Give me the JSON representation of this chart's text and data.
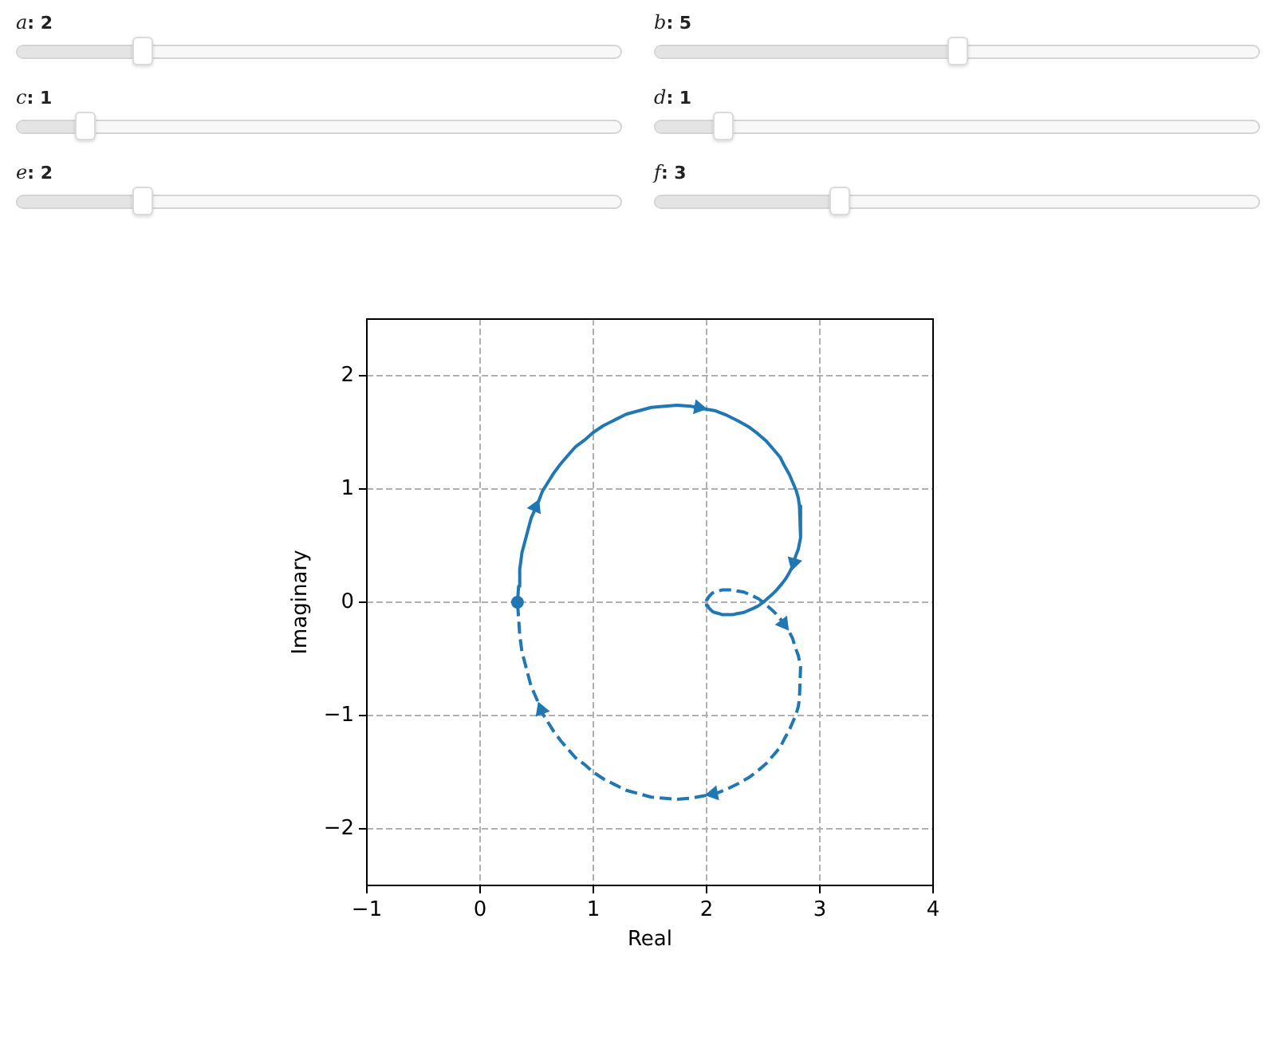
{
  "chart_data": {
    "type": "line",
    "xlabel": "Real",
    "ylabel": "Imaginary",
    "annotations": [
      "a: 2",
      "b: 5",
      "c: 1",
      "d: 1",
      "e: 2",
      "f: 3"
    ],
    "xlim": [
      -1,
      4
    ],
    "ylim": [
      -2.5,
      2.5
    ],
    "xticks": [
      {
        "value": -1,
        "label": "−1"
      },
      0,
      1,
      2,
      3,
      4
    ],
    "yticks": [
      {
        "value": -2,
        "label": "−2"
      },
      {
        "value": -1,
        "label": "−1"
      },
      0,
      1,
      2
    ],
    "grid": true,
    "series": [
      {
        "type": "line",
        "color": "#1f77b4",
        "line_style": "solid",
        "x": [
          0.33,
          0.34,
          0.35,
          0.37,
          0.41,
          0.45,
          0.52,
          0.55,
          0.6,
          0.65,
          0.71,
          0.77,
          0.84,
          0.92,
          1.0,
          1.09,
          1.19,
          1.29,
          1.4,
          1.51,
          1.63,
          1.74,
          1.86,
          1.97,
          2.08,
          2.18,
          2.28,
          2.37,
          2.45,
          2.53,
          2.59,
          2.65,
          2.69,
          2.73,
          2.76,
          2.79,
          2.81,
          2.82,
          2.83,
          2.81,
          2.78,
          2.76,
          2.73,
          2.7,
          2.67,
          2.62,
          2.58,
          2.5,
          2.46,
          2.42,
          2.33,
          2.27,
          2.23,
          2.19,
          2.14,
          2.11,
          2.07,
          2.05,
          2.03,
          2.02,
          2.01,
          2.0,
          2.0
        ],
        "values": [
          0,
          0.14,
          0.29,
          0.44,
          0.59,
          0.74,
          0.9,
          0.98,
          1.06,
          1.14,
          1.22,
          1.29,
          1.37,
          1.43,
          1.5,
          1.56,
          1.61,
          1.66,
          1.69,
          1.72,
          1.73,
          1.74,
          1.73,
          1.71,
          1.69,
          1.65,
          1.6,
          1.55,
          1.49,
          1.42,
          1.35,
          1.28,
          1.2,
          1.13,
          1.06,
          0.99,
          0.92,
          0.85,
          0.57,
          0.47,
          0.39,
          0.32,
          0.26,
          0.21,
          0.17,
          0.11,
          0.07,
          0,
          -0.03,
          -0.05,
          -0.09,
          -0.1,
          -0.11,
          -0.11,
          -0.11,
          -0.1,
          -0.09,
          -0.08,
          -0.06,
          -0.05,
          -0.03,
          -0.02,
          -0.01
        ]
      },
      {
        "type": "line",
        "color": "#1f77b4",
        "line_style": "dashed",
        "x": [
          2.0,
          2.0,
          2.01,
          2.02,
          2.03,
          2.05,
          2.07,
          2.11,
          2.14,
          2.19,
          2.23,
          2.27,
          2.33,
          2.42,
          2.46,
          2.5,
          2.58,
          2.62,
          2.67,
          2.7,
          2.73,
          2.76,
          2.78,
          2.81,
          2.83,
          2.82,
          2.81,
          2.79,
          2.76,
          2.73,
          2.69,
          2.65,
          2.59,
          2.53,
          2.45,
          2.37,
          2.28,
          2.18,
          2.08,
          1.97,
          1.86,
          1.74,
          1.63,
          1.51,
          1.4,
          1.29,
          1.19,
          1.09,
          1.0,
          0.92,
          0.84,
          0.77,
          0.71,
          0.65,
          0.6,
          0.55,
          0.52,
          0.45,
          0.41,
          0.37,
          0.35,
          0.34,
          0.33
        ],
        "values": [
          0.01,
          0.02,
          0.03,
          0.05,
          0.06,
          0.08,
          0.09,
          0.1,
          0.11,
          0.11,
          0.11,
          0.1,
          0.09,
          0.05,
          0.03,
          0,
          -0.07,
          -0.11,
          -0.17,
          -0.21,
          -0.26,
          -0.32,
          -0.39,
          -0.47,
          -0.57,
          -0.85,
          -0.92,
          -0.99,
          -1.06,
          -1.13,
          -1.2,
          -1.28,
          -1.35,
          -1.42,
          -1.49,
          -1.55,
          -1.6,
          -1.65,
          -1.69,
          -1.71,
          -1.73,
          -1.74,
          -1.73,
          -1.72,
          -1.69,
          -1.66,
          -1.61,
          -1.56,
          -1.5,
          -1.43,
          -1.37,
          -1.29,
          -1.22,
          -1.14,
          -1.06,
          -0.98,
          -0.9,
          -0.74,
          -0.59,
          -0.44,
          -0.29,
          -0.14,
          0
        ]
      },
      {
        "type": "scatter",
        "color": "#1f77b4",
        "marker": "triangle",
        "x": [
          0.49,
          1.93,
          2.77,
          2.68,
          2.06,
          0.54
        ],
        "values": [
          0.84,
          1.72,
          0.35,
          -0.19,
          -1.69,
          -0.95
        ]
      },
      {
        "type": "scatter",
        "color": "#1f77b4",
        "marker": "circle",
        "x": [
          0.33
        ],
        "values": [
          0
        ]
      }
    ]
  }
}
